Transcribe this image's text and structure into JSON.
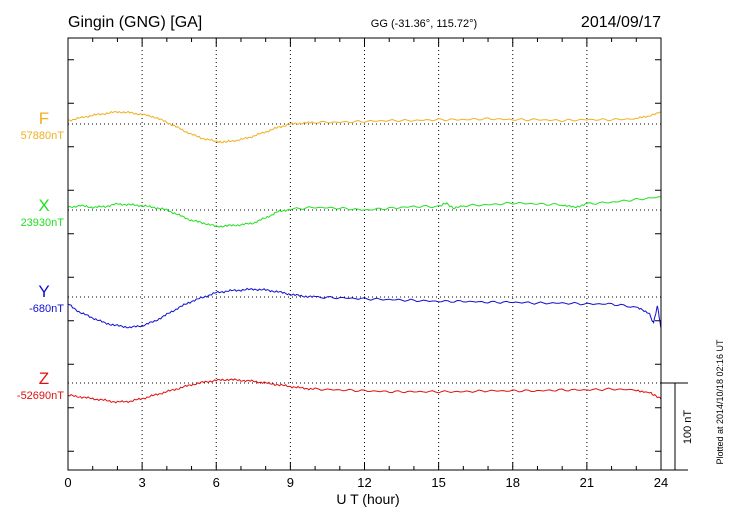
{
  "header": {
    "station": "Gingin (GNG)  [GA]",
    "coords": "GG (-31.36°, 115.72°)",
    "date": "2014/09/17"
  },
  "footer": {
    "plotted": "Plotted at 2014/10/18 02:16 UT"
  },
  "scale_bar_label": "100 nT",
  "chart_data": {
    "type": "line",
    "title": "Gingin (GNG)  [GA]",
    "xlabel": "U T (hour)",
    "xlim": [
      0,
      24
    ],
    "xticks": [
      0,
      3,
      6,
      9,
      12,
      15,
      18,
      21,
      24
    ],
    "xtick_labels": [
      "0",
      "3",
      "6",
      "9",
      "12",
      "15",
      "18",
      "21",
      "24"
    ],
    "grid": true,
    "ylim": [
      -55,
      240
    ],
    "units": "nT",
    "scale_bar_nT": 100,
    "series": [
      {
        "name": "F",
        "baseline_label": "57880nT",
        "color": "#f0b020",
        "baseline": 0,
        "points": [
          [
            0,
            4
          ],
          [
            0.5,
            7
          ],
          [
            1,
            10
          ],
          [
            1.5,
            12
          ],
          [
            2,
            14
          ],
          [
            2.5,
            13
          ],
          [
            3,
            11
          ],
          [
            3.5,
            8
          ],
          [
            4,
            2
          ],
          [
            4.5,
            -5
          ],
          [
            5,
            -12
          ],
          [
            5.5,
            -17
          ],
          [
            6,
            -20
          ],
          [
            6.2,
            -21
          ],
          [
            6.5,
            -20
          ],
          [
            7,
            -18
          ],
          [
            7.5,
            -14
          ],
          [
            8,
            -9
          ],
          [
            8.5,
            -4
          ],
          [
            9,
            0
          ],
          [
            9.5,
            1
          ],
          [
            10,
            2
          ],
          [
            11,
            2
          ],
          [
            12,
            3
          ],
          [
            13,
            4
          ],
          [
            14,
            4
          ],
          [
            15,
            5
          ],
          [
            16,
            5
          ],
          [
            17,
            6
          ],
          [
            18,
            5
          ],
          [
            19,
            5
          ],
          [
            20,
            4
          ],
          [
            21,
            5
          ],
          [
            22,
            5
          ],
          [
            23,
            6
          ],
          [
            23.6,
            10
          ],
          [
            24,
            14
          ]
        ]
      },
      {
        "name": "X",
        "baseline_label": "23930nT",
        "color": "#22e022",
        "baseline": 0,
        "points": [
          [
            0,
            3
          ],
          [
            0.5,
            5
          ],
          [
            1,
            3
          ],
          [
            1.5,
            4
          ],
          [
            2,
            7
          ],
          [
            2.5,
            6
          ],
          [
            3,
            5
          ],
          [
            3.5,
            3
          ],
          [
            4,
            0
          ],
          [
            4.5,
            -6
          ],
          [
            5,
            -12
          ],
          [
            5.5,
            -15
          ],
          [
            6,
            -19
          ],
          [
            6.5,
            -18
          ],
          [
            7,
            -17
          ],
          [
            7.5,
            -15
          ],
          [
            8,
            -9
          ],
          [
            8.5,
            -2
          ],
          [
            9,
            1
          ],
          [
            10,
            3
          ],
          [
            11,
            2
          ],
          [
            12,
            0
          ],
          [
            13,
            2
          ],
          [
            14,
            4
          ],
          [
            15,
            4
          ],
          [
            15.3,
            8
          ],
          [
            15.6,
            2
          ],
          [
            16,
            5
          ],
          [
            17,
            6
          ],
          [
            18,
            8
          ],
          [
            19,
            7
          ],
          [
            20,
            6
          ],
          [
            20.5,
            3
          ],
          [
            21,
            7
          ],
          [
            22,
            9
          ],
          [
            23,
            12
          ],
          [
            24,
            15
          ]
        ]
      },
      {
        "name": "Y",
        "baseline_label": "-680nT",
        "color": "#1010d0",
        "baseline": 0,
        "points": [
          [
            0,
            -8
          ],
          [
            0.5,
            -18
          ],
          [
            1,
            -24
          ],
          [
            1.5,
            -30
          ],
          [
            2,
            -33
          ],
          [
            2.5,
            -35
          ],
          [
            3,
            -33
          ],
          [
            3.5,
            -28
          ],
          [
            4,
            -20
          ],
          [
            4.5,
            -12
          ],
          [
            5,
            -5
          ],
          [
            5.5,
            0
          ],
          [
            6,
            5
          ],
          [
            6.5,
            7
          ],
          [
            7,
            8
          ],
          [
            7.5,
            9
          ],
          [
            8,
            8
          ],
          [
            8.5,
            6
          ],
          [
            9,
            3
          ],
          [
            9.5,
            1
          ],
          [
            10,
            0
          ],
          [
            11,
            -1
          ],
          [
            12,
            -2
          ],
          [
            13,
            -3
          ],
          [
            14,
            -4
          ],
          [
            15,
            -5
          ],
          [
            16,
            -5
          ],
          [
            17,
            -6
          ],
          [
            18,
            -6
          ],
          [
            19,
            -7
          ],
          [
            20,
            -7
          ],
          [
            21,
            -8
          ],
          [
            22,
            -8
          ],
          [
            23,
            -12
          ],
          [
            23.5,
            -18
          ],
          [
            23.7,
            -30
          ],
          [
            23.85,
            -10
          ],
          [
            24,
            -35
          ]
        ]
      },
      {
        "name": "Z",
        "baseline_label": "-52690nT",
        "color": "#e01010",
        "baseline": 0,
        "points": [
          [
            0,
            -14
          ],
          [
            0.5,
            -16
          ],
          [
            1,
            -18
          ],
          [
            1.5,
            -20
          ],
          [
            2,
            -22
          ],
          [
            2.5,
            -21
          ],
          [
            3,
            -18
          ],
          [
            3.5,
            -14
          ],
          [
            4,
            -10
          ],
          [
            4.5,
            -6
          ],
          [
            5,
            -2
          ],
          [
            5.5,
            1
          ],
          [
            6,
            3
          ],
          [
            6.5,
            4
          ],
          [
            7,
            3
          ],
          [
            7.5,
            2
          ],
          [
            8,
            0
          ],
          [
            8.5,
            -2
          ],
          [
            9,
            -4
          ],
          [
            9.5,
            -6
          ],
          [
            10,
            -7
          ],
          [
            11,
            -8
          ],
          [
            12,
            -9
          ],
          [
            13,
            -10
          ],
          [
            14,
            -10
          ],
          [
            15,
            -10
          ],
          [
            16,
            -10
          ],
          [
            17,
            -9
          ],
          [
            18,
            -9
          ],
          [
            19,
            -9
          ],
          [
            20,
            -8
          ],
          [
            21,
            -8
          ],
          [
            22,
            -7
          ],
          [
            23,
            -8
          ],
          [
            23.6,
            -12
          ],
          [
            24,
            -18
          ]
        ]
      }
    ]
  }
}
